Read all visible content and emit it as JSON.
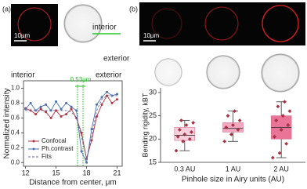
{
  "figure": {
    "panel_labels": [
      "(a)",
      "(b)"
    ],
    "scale_bars": [
      "10μm",
      "10μm"
    ],
    "image_labels": [
      "interior",
      "exterior"
    ]
  },
  "chart_data": [
    {
      "type": "line",
      "ylabel": "Normalized intensity",
      "xlabel": "Distance from center, μm",
      "annotations": [
        "interior",
        "exterior",
        "0.53μm"
      ],
      "x": [
        12,
        12.5,
        13,
        13.5,
        14,
        14.5,
        15,
        15.5,
        16,
        16.5,
        17,
        17.5,
        18,
        18.5,
        19,
        19.5,
        20,
        20.5,
        21
      ],
      "series": [
        {
          "name": "Confocal",
          "color": "#b03040",
          "style": "solid",
          "marker": true,
          "values": [
            0.73,
            0.7,
            0.65,
            0.72,
            0.68,
            0.6,
            0.7,
            0.62,
            0.65,
            0.72,
            0.6,
            0.4,
            0.05,
            0.3,
            0.62,
            0.78,
            0.9,
            0.8,
            0.85
          ]
        },
        {
          "name": "Ph.contrast",
          "color": "#4a6fb0",
          "style": "solid",
          "marker": true,
          "values": [
            0.72,
            0.8,
            0.7,
            0.75,
            0.78,
            0.7,
            0.82,
            0.72,
            0.8,
            0.75,
            0.7,
            0.15,
            0.0,
            0.45,
            0.78,
            0.88,
            0.95,
            0.9,
            0.92
          ]
        },
        {
          "name": "Fits",
          "color": "#6a6a9a",
          "style": "dashed",
          "marker": false,
          "values": [
            0.7,
            0.7,
            0.7,
            0.7,
            0.7,
            0.7,
            0.7,
            0.7,
            0.7,
            0.68,
            0.6,
            0.35,
            0.05,
            0.35,
            0.7,
            0.85,
            0.9,
            0.9,
            0.9
          ]
        }
      ],
      "xlim": [
        11.8,
        21.5
      ],
      "xticks": [
        12,
        15,
        18,
        21
      ],
      "ylim": [
        -0.05,
        1.1
      ],
      "yticks": [
        {
          "value": 0,
          "label": "0.0"
        },
        0.2,
        0.4,
        0.6,
        0.8,
        {
          "value": 1,
          "label": "1.0"
        }
      ],
      "legend": "lower left"
    },
    {
      "type": "box",
      "ylabel": "Bending rigidity, kBT",
      "xlabel": "Pinhole size in Airy units (AU)",
      "categories": [
        "0.3 AU",
        "1 AU",
        "2 AU"
      ],
      "boxes": [
        {
          "color": "#f8cfdc",
          "min": 17.5,
          "q1": 19.7,
          "median": 20.8,
          "q3": 22.5,
          "max": 24,
          "points": [
            17.5,
            19.5,
            20,
            20.5,
            21,
            21.5,
            22,
            23,
            23.5,
            24
          ]
        },
        {
          "color": "#f3a8c0",
          "min": 19.5,
          "q1": 21.5,
          "median": 22.3,
          "q3": 23.5,
          "max": 26,
          "points": [
            19.5,
            21,
            22,
            22.5,
            23,
            24,
            25,
            26
          ]
        },
        {
          "color": "#ea7398",
          "min": 16,
          "q1": 20,
          "median": 22.5,
          "q3": 25,
          "max": 28,
          "points": [
            16,
            17,
            19,
            20.5,
            22,
            23,
            24,
            25,
            26,
            27,
            28
          ]
        }
      ],
      "point_color": "#b03040",
      "ylim": [
        15,
        31
      ],
      "yticks": [
        15,
        20,
        25,
        30
      ]
    }
  ]
}
